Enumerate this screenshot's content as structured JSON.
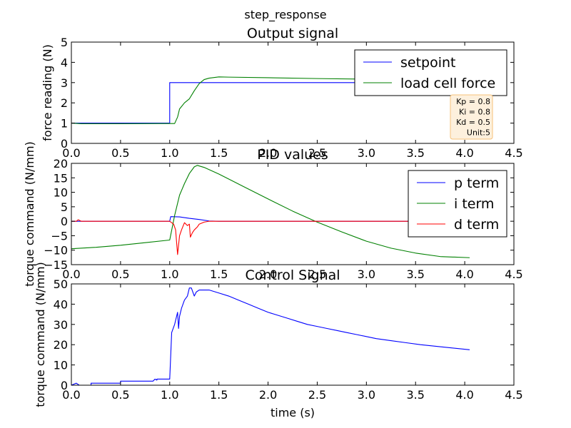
{
  "figure": {
    "suptitle": "step_response",
    "colors": {
      "blue": "#0000ff",
      "green": "#008000",
      "red": "#ff0000",
      "annot_bg": "#fdf0dd",
      "annot_border": "#f6c27a"
    }
  },
  "chart_data": [
    {
      "type": "line",
      "title": "Output signal",
      "xlabel": "",
      "ylabel": "force reading (N)",
      "xlim": [
        0,
        4.5
      ],
      "ylim": [
        0,
        5
      ],
      "xticks": [
        "0.0",
        "0.5",
        "1.0",
        "1.5",
        "2.0",
        "2.5",
        "3.0",
        "3.5",
        "4.0",
        "4.5"
      ],
      "yticks": [
        "0",
        "1",
        "2",
        "3",
        "4",
        "5"
      ],
      "legend": "upper-right",
      "annotation": [
        "Kp = 0.8",
        "Ki = 0.8",
        "Kd = 0.5",
        "Unit:5"
      ],
      "series": [
        {
          "name": "setpoint",
          "color": "#0000ff",
          "x": [
            0,
            1.0,
            1.0,
            4.05
          ],
          "y": [
            1,
            1,
            3,
            3
          ]
        },
        {
          "name": "load cell force",
          "color": "#008000",
          "x": [
            0,
            0.1,
            0.5,
            0.9,
            1.0,
            1.05,
            1.08,
            1.1,
            1.15,
            1.2,
            1.25,
            1.3,
            1.35,
            1.4,
            1.5,
            1.6,
            2.0,
            2.5,
            3.0,
            3.5,
            4.05
          ],
          "y": [
            1.0,
            0.97,
            0.97,
            0.98,
            0.98,
            0.98,
            1.3,
            1.7,
            2.0,
            2.2,
            2.6,
            2.95,
            3.15,
            3.22,
            3.28,
            3.27,
            3.24,
            3.2,
            3.17,
            3.14,
            3.12
          ]
        }
      ]
    },
    {
      "type": "line",
      "title": "PID values",
      "xlabel": "",
      "ylabel": "torque command (N/mm)",
      "xlim": [
        0,
        4.5
      ],
      "ylim": [
        -15,
        20
      ],
      "xticks": [
        "0.0",
        "0.5",
        "1.0",
        "1.5",
        "2.0",
        "2.5",
        "3.0",
        "3.5",
        "4.0",
        "4.5"
      ],
      "yticks": [
        "−15",
        "−10",
        "−5",
        "0",
        "5",
        "10",
        "15",
        "20"
      ],
      "legend": "upper-right",
      "series": [
        {
          "name": "p term",
          "color": "#0000ff",
          "x": [
            0,
            1.0,
            1.01,
            1.1,
            1.2,
            1.3,
            1.4,
            1.5,
            4.05
          ],
          "y": [
            0,
            0,
            1.6,
            1.5,
            1.0,
            0.6,
            0.1,
            0,
            0
          ]
        },
        {
          "name": "i term",
          "color": "#008000",
          "x": [
            0,
            0.25,
            0.5,
            0.75,
            1.0,
            1.05,
            1.1,
            1.15,
            1.2,
            1.25,
            1.28,
            1.35,
            1.5,
            1.75,
            2.0,
            2.25,
            2.5,
            2.75,
            3.0,
            3.25,
            3.5,
            3.75,
            4.05
          ],
          "y": [
            -9.5,
            -9.0,
            -8.3,
            -7.4,
            -6.5,
            2.0,
            9.0,
            13.0,
            16.5,
            18.8,
            19.3,
            18.6,
            16.3,
            12.0,
            7.7,
            3.5,
            -0.3,
            -3.7,
            -6.9,
            -9.3,
            -11.0,
            -12.2,
            -12.6
          ]
        },
        {
          "name": "d term",
          "color": "#ff0000",
          "x": [
            0,
            0.05,
            0.07,
            0.1,
            1.0,
            1.04,
            1.06,
            1.08,
            1.1,
            1.12,
            1.15,
            1.18,
            1.2,
            1.21,
            1.23,
            1.25,
            1.28,
            1.3,
            1.35,
            1.4,
            4.05
          ],
          "y": [
            0,
            0,
            0.5,
            0,
            0,
            -1.0,
            -3.0,
            -11.5,
            -5.0,
            -3.0,
            -0.5,
            -1.5,
            -1.0,
            -5.5,
            -4.0,
            -3.0,
            -2.0,
            -1.0,
            -0.3,
            0,
            0
          ]
        }
      ]
    },
    {
      "type": "line",
      "title": "Control Signal",
      "xlabel": "time (s)",
      "ylabel": "torque command (N/mm)",
      "xlim": [
        0,
        4.5
      ],
      "ylim": [
        0,
        50
      ],
      "xticks": [
        "0.0",
        "0.5",
        "1.0",
        "1.5",
        "2.0",
        "2.5",
        "3.0",
        "3.5",
        "4.0",
        "4.5"
      ],
      "yticks": [
        "0",
        "10",
        "20",
        "30",
        "40",
        "50"
      ],
      "series": [
        {
          "name": "",
          "color": "#0000ff",
          "x": [
            0,
            0.05,
            0.08,
            0.1,
            0.2,
            0.2,
            0.5,
            0.5,
            0.83,
            0.85,
            0.87,
            0.87,
            1.0,
            1.02,
            1.05,
            1.08,
            1.09,
            1.1,
            1.12,
            1.15,
            1.18,
            1.2,
            1.22,
            1.25,
            1.27,
            1.3,
            1.35,
            1.4,
            1.5,
            1.6,
            1.7,
            1.8,
            1.9,
            2.0,
            2.1,
            2.2,
            2.3,
            2.4,
            2.5,
            2.6,
            2.7,
            2.8,
            2.9,
            3.0,
            3.1,
            3.25,
            3.4,
            3.55,
            3.75,
            4.05
          ],
          "y": [
            0,
            1.0,
            0,
            0,
            0,
            1.0,
            1.0,
            2.0,
            2.0,
            3.0,
            2.5,
            3.0,
            3.0,
            26.0,
            30.0,
            36.0,
            28.0,
            34.0,
            38.0,
            42.0,
            44.0,
            48.0,
            48.0,
            44.0,
            46.0,
            47.0,
            47.0,
            47.0,
            45.5,
            44.0,
            42.0,
            40.0,
            38.0,
            36.0,
            34.5,
            33.0,
            31.5,
            30.0,
            29.0,
            28.0,
            27.0,
            26.0,
            25.0,
            24.0,
            23.0,
            22.0,
            21.0,
            20.0,
            19.0,
            17.5
          ]
        }
      ]
    }
  ]
}
